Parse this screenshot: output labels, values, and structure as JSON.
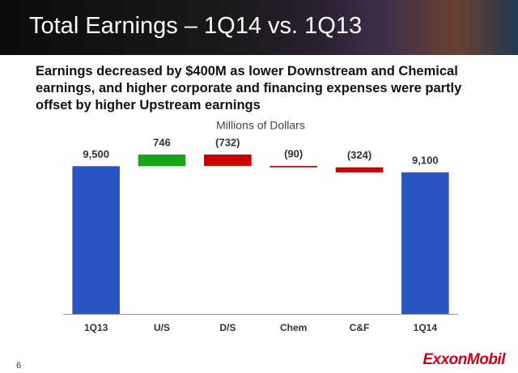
{
  "slide": {
    "title": "Total Earnings – 1Q14 vs. 1Q13",
    "headline": [
      "Earnings decreased by $400M as lower Downstream and Chemical",
      "earnings, and higher corporate and financing expenses were partly",
      "offset by higher Upstream earnings"
    ],
    "page_number": "6",
    "logo": "ExxonMobil"
  },
  "chart_data": {
    "type": "waterfall",
    "y_label": "Millions of Dollars",
    "categories": [
      "1Q13",
      "U/S",
      "D/S",
      "Chem",
      "C&F",
      "1Q14"
    ],
    "values": [
      9500,
      746,
      -732,
      -90,
      -324,
      9100
    ],
    "value_labels": [
      "9,500",
      "746",
      "(732)",
      "(90)",
      "(324)",
      "9,100"
    ],
    "total_color": "#2b55c3",
    "increase_color": "#16a516",
    "decrease_color": "#cc0000"
  }
}
